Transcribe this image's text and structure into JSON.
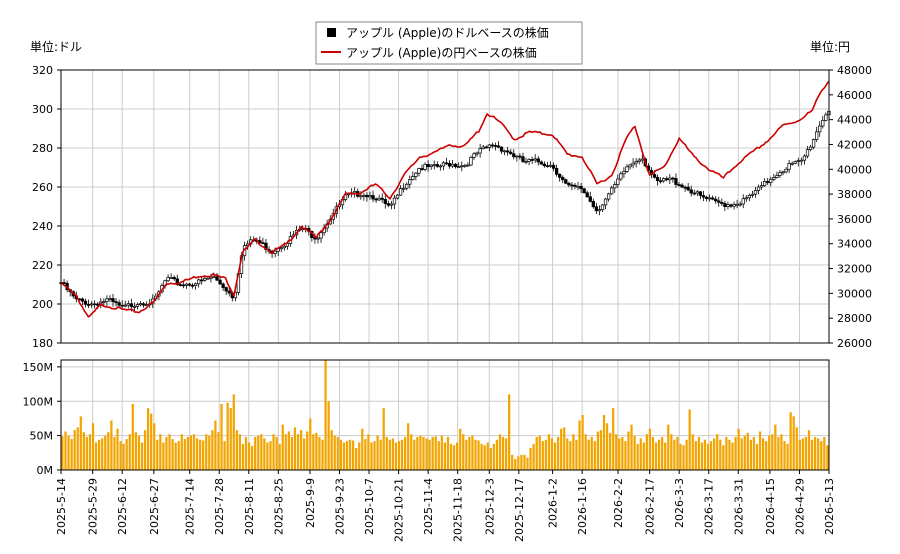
{
  "chart_data": [
    {
      "type": "line",
      "legend": {
        "placement": "top-center",
        "entries": [
          {
            "label": "アップル (Apple)のドルベースの株価",
            "color": "#000000",
            "marker": "square"
          },
          {
            "label": "アップル (Apple)の円ベースの株価",
            "color": "#cc0000",
            "marker": "line"
          }
        ]
      },
      "left_axis_unit": "単位:ドル",
      "right_axis_unit": "単位:円",
      "grid": true,
      "ylim_left": [
        180,
        320
      ],
      "yticks_left": [
        "180",
        "200",
        "220",
        "240",
        "260",
        "280",
        "300",
        "320"
      ],
      "ylim_right": [
        26000,
        48000
      ],
      "yticks_right": [
        "26000",
        "28000",
        "30000",
        "32000",
        "34000",
        "36000",
        "38000",
        "40000",
        "42000",
        "44000",
        "46000",
        "48000"
      ],
      "series": [
        {
          "name": "アップル (Apple)のドルベースの株価",
          "color": "#000000",
          "style": "candlestick",
          "points": [
            [
              "2025-05-14",
              211
            ],
            [
              "2025-05-21",
              202
            ],
            [
              "2025-05-29",
              200
            ],
            [
              "2025-06-05",
              202
            ],
            [
              "2025-06-12",
              198
            ],
            [
              "2025-06-20",
              201
            ],
            [
              "2025-06-27",
              201
            ],
            [
              "2025-07-03",
              213
            ],
            [
              "2025-07-10",
              210
            ],
            [
              "2025-07-18",
              211
            ],
            [
              "2025-07-25",
              214
            ],
            [
              "2025-07-31",
              208
            ],
            [
              "2025-08-04",
              203
            ],
            [
              "2025-08-08",
              229
            ],
            [
              "2025-08-14",
              233
            ],
            [
              "2025-08-22",
              227
            ],
            [
              "2025-08-29",
              232
            ],
            [
              "2025-09-05",
              239
            ],
            [
              "2025-09-12",
              234
            ],
            [
              "2025-09-19",
              245
            ],
            [
              "2025-09-26",
              255
            ],
            [
              "2025-10-03",
              257
            ],
            [
              "2025-10-10",
              255
            ],
            [
              "2025-10-17",
              249
            ],
            [
              "2025-10-24",
              262
            ],
            [
              "2025-10-31",
              270
            ],
            [
              "2025-11-07",
              270
            ],
            [
              "2025-11-14",
              272
            ],
            [
              "2025-11-21",
              271
            ],
            [
              "2025-11-28",
              278
            ],
            [
              "2025-12-05",
              282
            ],
            [
              "2025-12-12",
              278
            ],
            [
              "2025-12-19",
              273
            ],
            [
              "2025-12-26",
              273
            ],
            [
              "2026-01-02",
              271
            ],
            [
              "2026-01-09",
              260
            ],
            [
              "2026-01-16",
              259
            ],
            [
              "2026-01-23",
              248
            ],
            [
              "2026-01-30",
              258
            ],
            [
              "2026-02-06",
              270
            ],
            [
              "2026-02-13",
              276
            ],
            [
              "2026-02-20",
              262
            ],
            [
              "2026-02-27",
              264
            ],
            [
              "2026-03-06",
              260
            ],
            [
              "2026-03-13",
              255
            ],
            [
              "2026-03-20",
              252
            ],
            [
              "2026-03-27",
              251
            ],
            [
              "2026-04-03",
              253
            ],
            [
              "2026-04-10",
              259
            ],
            [
              "2026-04-17",
              266
            ],
            [
              "2026-04-24",
              271
            ],
            [
              "2026-04-30",
              273
            ],
            [
              "2026-05-05",
              283
            ],
            [
              "2026-05-09",
              293
            ],
            [
              "2026-05-13",
              300
            ]
          ]
        },
        {
          "name": "アップル (Apple)の円ベースの株価",
          "color": "#cc0000",
          "style": "line",
          "points": [
            [
              "2025-05-14",
              30800
            ],
            [
              "2025-05-21",
              29900
            ],
            [
              "2025-05-27",
              28000
            ],
            [
              "2025-06-02",
              29100
            ],
            [
              "2025-06-12",
              28700
            ],
            [
              "2025-06-20",
              28500
            ],
            [
              "2025-06-27",
              29300
            ],
            [
              "2025-07-03",
              30800
            ],
            [
              "2025-07-10",
              30900
            ],
            [
              "2025-07-18",
              31400
            ],
            [
              "2025-07-25",
              31500
            ],
            [
              "2025-07-31",
              31200
            ],
            [
              "2025-08-04",
              29900
            ],
            [
              "2025-08-08",
              33300
            ],
            [
              "2025-08-14",
              34300
            ],
            [
              "2025-08-22",
              33300
            ],
            [
              "2025-08-29",
              34000
            ],
            [
              "2025-09-05",
              35400
            ],
            [
              "2025-09-12",
              34500
            ],
            [
              "2025-09-19",
              36000
            ],
            [
              "2025-09-26",
              38000
            ],
            [
              "2025-10-03",
              38100
            ],
            [
              "2025-10-10",
              38800
            ],
            [
              "2025-10-17",
              37700
            ],
            [
              "2025-10-24",
              39600
            ],
            [
              "2025-10-31",
              41000
            ],
            [
              "2025-11-07",
              41300
            ],
            [
              "2025-11-14",
              42000
            ],
            [
              "2025-11-21",
              41800
            ],
            [
              "2025-11-28",
              43100
            ],
            [
              "2025-12-02",
              44500
            ],
            [
              "2025-12-08",
              43800
            ],
            [
              "2025-12-15",
              42400
            ],
            [
              "2025-12-22",
              43000
            ],
            [
              "2026-01-02",
              42800
            ],
            [
              "2026-01-09",
              41200
            ],
            [
              "2026-01-16",
              41000
            ],
            [
              "2026-01-23",
              38800
            ],
            [
              "2026-01-30",
              39500
            ],
            [
              "2026-02-06",
              42500
            ],
            [
              "2026-02-10",
              43500
            ],
            [
              "2026-02-17",
              39500
            ],
            [
              "2026-02-24",
              40200
            ],
            [
              "2026-03-03",
              42500
            ],
            [
              "2026-03-10",
              41000
            ],
            [
              "2026-03-17",
              40000
            ],
            [
              "2026-03-24",
              39300
            ],
            [
              "2026-03-31",
              40500
            ],
            [
              "2026-04-07",
              41400
            ],
            [
              "2026-04-14",
              42300
            ],
            [
              "2026-04-21",
              43500
            ],
            [
              "2026-04-28",
              43900
            ],
            [
              "2026-05-05",
              44700
            ],
            [
              "2026-05-09",
              46200
            ],
            [
              "2026-05-13",
              47200
            ]
          ]
        }
      ]
    },
    {
      "type": "bar",
      "series_name": "出来高",
      "color": "#f2a500",
      "grid": true,
      "ylim": [
        0,
        160
      ],
      "yticks": [
        "0M",
        "50M",
        "100M",
        "150M"
      ],
      "xticks": [
        "2025-5-14",
        "2025-5-29",
        "2025-6-12",
        "2025-6-27",
        "2025-7-14",
        "2025-7-28",
        "2025-8-11",
        "2025-8-25",
        "2025-9-9",
        "2025-9-23",
        "2025-10-7",
        "2025-10-21",
        "2025-11-4",
        "2025-11-18",
        "2025-12-3",
        "2025-12-17",
        "2026-1-2",
        "2026-1-16",
        "2026-2-2",
        "2026-2-17",
        "2026-3-3",
        "2026-3-17",
        "2026-3-31",
        "2026-4-15",
        "2026-4-29",
        "2026-5-13"
      ],
      "values_millions": [
        49,
        56,
        50,
        45,
        58,
        62,
        78,
        55,
        48,
        52,
        68,
        40,
        44,
        46,
        50,
        55,
        72,
        48,
        60,
        42,
        38,
        45,
        52,
        96,
        55,
        50,
        40,
        58,
        90,
        82,
        68,
        44,
        52,
        40,
        48,
        52,
        45,
        40,
        42,
        52,
        45,
        48,
        50,
        52,
        46,
        44,
        43,
        52,
        50,
        58,
        72,
        55,
        96,
        42,
        98,
        90,
        110,
        58,
        52,
        38,
        48,
        40,
        35,
        48,
        50,
        52,
        46,
        40,
        42,
        52,
        48,
        38,
        66,
        52,
        56,
        48,
        62,
        52,
        58,
        46,
        56,
        75,
        52,
        54,
        48,
        44,
        162,
        100,
        58,
        50,
        48,
        44,
        40,
        42,
        44,
        43,
        32,
        40,
        60,
        45,
        52,
        40,
        42,
        50,
        44,
        90,
        48,
        44,
        46,
        40,
        42,
        44,
        48,
        68,
        52,
        44,
        48,
        50,
        48,
        46,
        44,
        48,
        49,
        42,
        50,
        40,
        48,
        38,
        36,
        40,
        60,
        52,
        44,
        48,
        50,
        44,
        43,
        38,
        36,
        40,
        32,
        38,
        44,
        52,
        48,
        46,
        110,
        22,
        16,
        20,
        22,
        22,
        18,
        32,
        38,
        48,
        50,
        42,
        44,
        52,
        46,
        40,
        48,
        60,
        62,
        46,
        42,
        52,
        44,
        72,
        80,
        52,
        44,
        48,
        42,
        56,
        58,
        80,
        68,
        54,
        90,
        52,
        46,
        48,
        42,
        56,
        66,
        50,
        38,
        46,
        40,
        52,
        60,
        48,
        40,
        44,
        48,
        40,
        66,
        52,
        44,
        48,
        38,
        36,
        44,
        88,
        52,
        42,
        48,
        40,
        44,
        38,
        42,
        46,
        52,
        44,
        36,
        48,
        44,
        40,
        48,
        60,
        46,
        50,
        54,
        44,
        48,
        38,
        56,
        46,
        42,
        50,
        52,
        66,
        48,
        52,
        42,
        38,
        84,
        78,
        62,
        44,
        46,
        48,
        58,
        44,
        48,
        46,
        42,
        48,
        36
      ]
    }
  ]
}
